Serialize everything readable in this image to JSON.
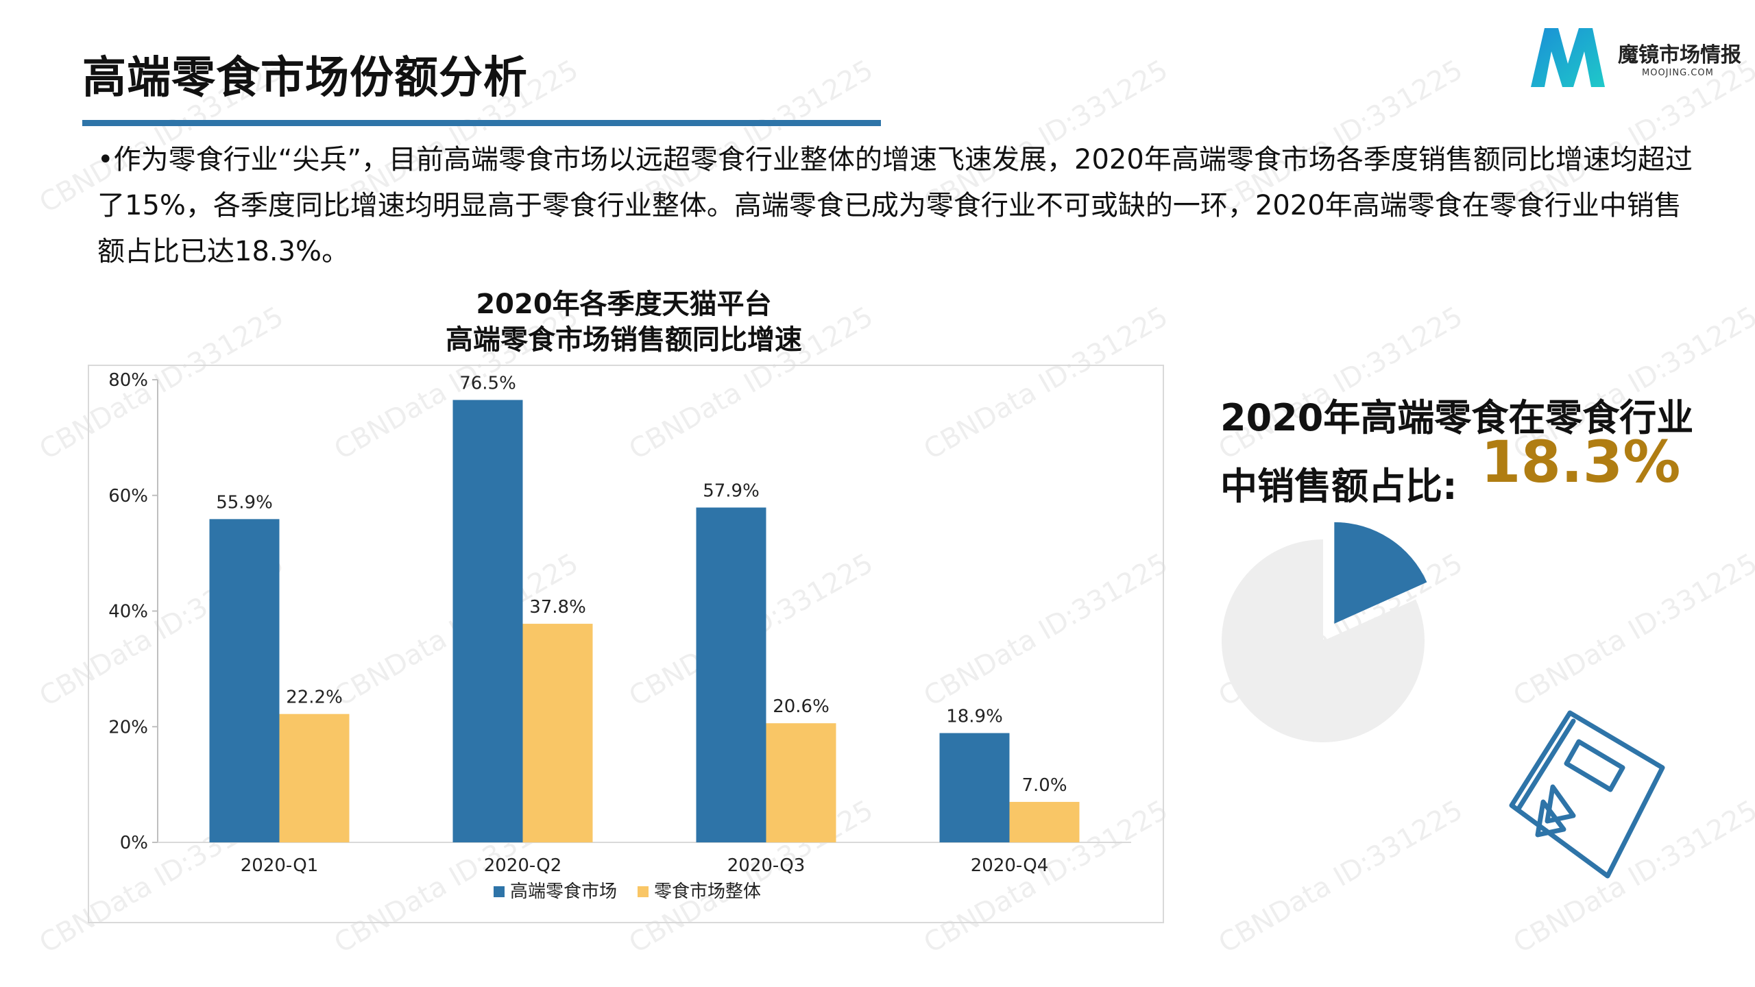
{
  "header": {
    "title": "高端零食市场份额分析",
    "logo_name": "魔镜市场情报",
    "logo_sub": "MOOJING.COM"
  },
  "intro": {
    "text": "•作为零食行业“尖兵”，目前高端零食市场以远超零食行业整体的增速飞速发展，2020年高端零食市场各季度销售额同比增速均超过了15%，各季度同比增速均明显高于零食行业整体。高端零食已成为零食行业不可或缺的一环，2020年高端零食在零食行业中销售额占比已达18.3%。"
  },
  "chart_data": [
    {
      "type": "bar",
      "title": "2020年各季度天猫平台\n高端零食市场销售额同比增速",
      "categories": [
        "2020-Q1",
        "2020-Q2",
        "2020-Q3",
        "2020-Q4"
      ],
      "series": [
        {
          "name": "高端零食市场",
          "values": [
            55.9,
            76.5,
            57.9,
            18.9
          ],
          "labels": [
            "55.9%",
            "76.5%",
            "57.9%",
            "18.9%"
          ],
          "color": "#2e74a8"
        },
        {
          "name": "零食市场整体",
          "values": [
            22.2,
            37.8,
            20.6,
            7.0
          ],
          "labels": [
            "22.2%",
            "37.8%",
            "20.6%",
            "7.0%"
          ],
          "color": "#f9c666"
        }
      ],
      "yticks": [
        "0%",
        "20%",
        "40%",
        "60%",
        "80%"
      ],
      "ylim": [
        0,
        80
      ],
      "grid": false,
      "legend": "bottom"
    },
    {
      "type": "pie",
      "values": [
        18.3,
        81.7
      ],
      "colors": [
        "#2e74a8",
        "#eeeeee"
      ],
      "exploded": "first"
    }
  ],
  "share": {
    "text_line1": "2020年高端零食在零食行业",
    "text_line2": "中销售额占比:",
    "value": "18.3%"
  },
  "watermark": "CBNData ID:331225",
  "colors": {
    "accent": "#2e74a8",
    "highlight": "#b07d12",
    "secondary": "#f9c666"
  }
}
